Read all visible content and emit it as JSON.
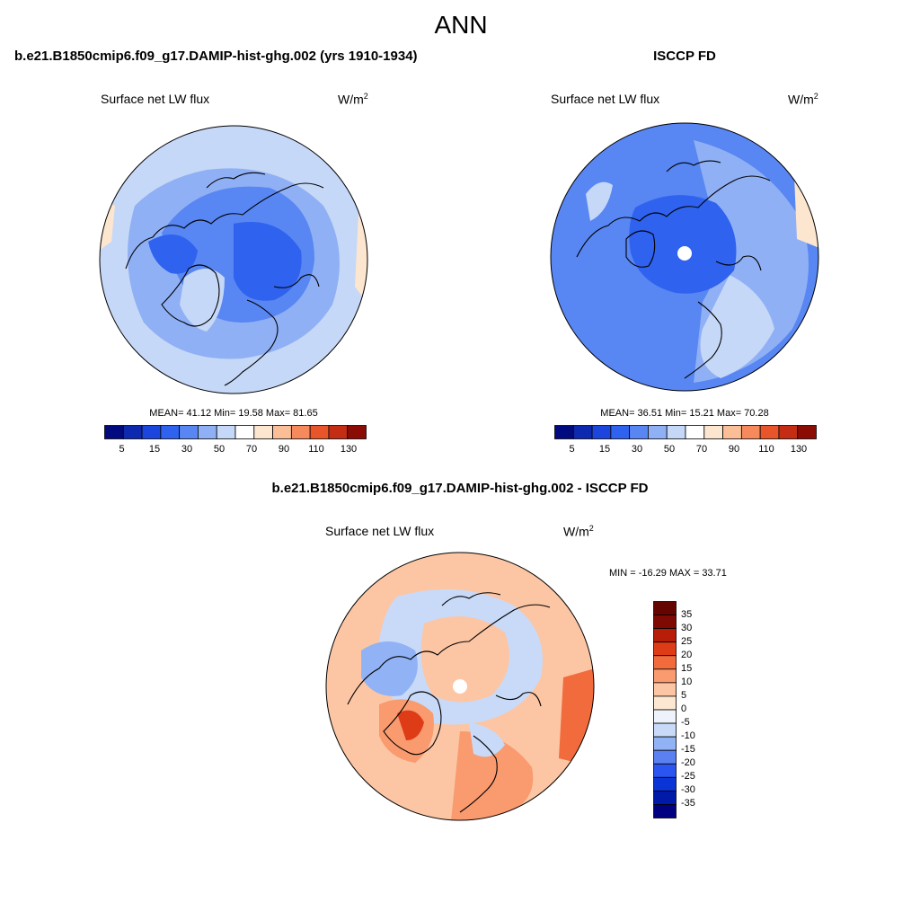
{
  "page_title": "ANN",
  "colors": {
    "scale12": [
      "#020a80",
      "#0c29b0",
      "#1c45dd",
      "#2f62ee",
      "#5886f2",
      "#90b0f5",
      "#c6d8f7",
      "#ffffff",
      "#fde6cf",
      "#fbbf98",
      "#f68a5c",
      "#e8552a",
      "#c42d14",
      "#8b0c05"
    ],
    "diff": [
      "#000080",
      "#0019a8",
      "#0a34d6",
      "#2a55f0",
      "#5a80f2",
      "#92b2f6",
      "#c8daf8",
      "#eef3fb",
      "#fde7d2",
      "#fcc6a4",
      "#f99a6f",
      "#f26b3d",
      "#de3c16",
      "#b81d08",
      "#7f0a03"
    ],
    "coast": "#000000",
    "missing": "#ffffff"
  },
  "panel_a": {
    "title": "b.e21.B1850cmip6.f09_g17.DAMIP-hist-ghg.002 (yrs 1910-1934)",
    "left_string": "Surface net LW flux",
    "units": "W/m",
    "units_exp": "2",
    "stats_text": "MEAN=  41.12  Min=  19.58  Max=  81.65",
    "colorbar_labels": [
      "5",
      "15",
      "30",
      "50",
      "70",
      "90",
      "110",
      "130"
    ]
  },
  "panel_b": {
    "title": "ISCCP FD",
    "left_string": "Surface net LW flux",
    "units": "W/m",
    "units_exp": "2",
    "stats_text": "MEAN=  36.51  Min=  15.21  Max=  70.28",
    "colorbar_labels": [
      "5",
      "15",
      "30",
      "50",
      "70",
      "90",
      "110",
      "130"
    ]
  },
  "panel_c": {
    "title": "b.e21.B1850cmip6.f09_g17.DAMIP-hist-ghg.002 - ISCCP FD",
    "left_string": "Surface net LW flux",
    "units": "W/m",
    "units_exp": "2",
    "stats_text": "MIN = -16.29 MAX =  33.71",
    "colorbar_labels": [
      "35",
      "30",
      "25",
      "20",
      "15",
      "10",
      "5",
      "0",
      "-5",
      "-10",
      "-15",
      "-20",
      "-25",
      "-30",
      "-35"
    ]
  }
}
